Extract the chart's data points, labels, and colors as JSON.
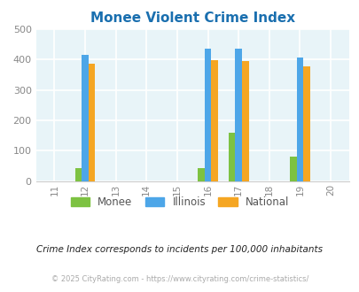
{
  "title": "Monee Violent Crime Index",
  "years": [
    2011,
    2012,
    2013,
    2014,
    2015,
    2016,
    2017,
    2018,
    2019,
    2020
  ],
  "xlabels": [
    "11",
    "12",
    "13",
    "14",
    "15",
    "16",
    "17",
    "18",
    "19",
    "20"
  ],
  "data": {
    "2012": {
      "monee": 43,
      "illinois": 415,
      "national": 387
    },
    "2016": {
      "monee": 43,
      "illinois": 437,
      "national": 397
    },
    "2017": {
      "monee": 160,
      "illinois": 437,
      "national": 394
    },
    "2019": {
      "monee": 80,
      "illinois": 408,
      "national": 379
    }
  },
  "bar_width": 0.22,
  "colors": {
    "monee": "#7dc242",
    "illinois": "#4da6e8",
    "national": "#f5a623"
  },
  "ylim": [
    0,
    500
  ],
  "yticks": [
    0,
    100,
    200,
    300,
    400,
    500
  ],
  "bg_color": "#e8f4f8",
  "grid_color": "#ffffff",
  "title_color": "#1a6faf",
  "subtitle": "Crime Index corresponds to incidents per 100,000 inhabitants",
  "footer": "© 2025 CityRating.com - https://www.cityrating.com/crime-statistics/",
  "legend_labels": [
    "Monee",
    "Illinois",
    "National"
  ]
}
